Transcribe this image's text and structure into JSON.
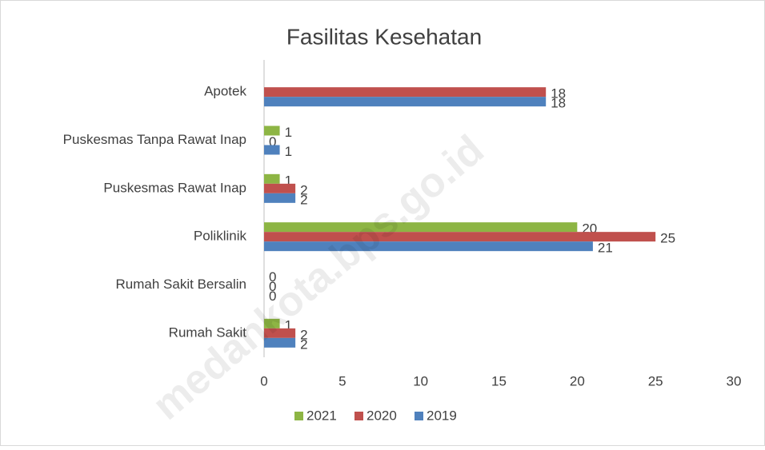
{
  "chart_data": {
    "type": "bar",
    "orientation": "horizontal",
    "title": "Fasilitas Kesehatan",
    "categories": [
      "Apotek",
      "Puskesmas Tanpa Rawat Inap",
      "Puskesmas Rawat Inap",
      "Poliklinik",
      "Rumah Sakit Bersalin",
      "Rumah Sakit"
    ],
    "series": [
      {
        "name": "2021",
        "color": "#8db544",
        "values": [
          null,
          1,
          1,
          20,
          0,
          1
        ]
      },
      {
        "name": "2020",
        "color": "#c0504d",
        "values": [
          18,
          0,
          2,
          25,
          0,
          2
        ]
      },
      {
        "name": "2019",
        "color": "#4f81bd",
        "values": [
          18,
          1,
          2,
          21,
          0,
          2
        ]
      }
    ],
    "xlim": [
      0,
      30
    ],
    "xticks": [
      0,
      5,
      10,
      15,
      20,
      25,
      30
    ],
    "legend": "bottom",
    "watermark": "medankota.bps.go.id"
  }
}
